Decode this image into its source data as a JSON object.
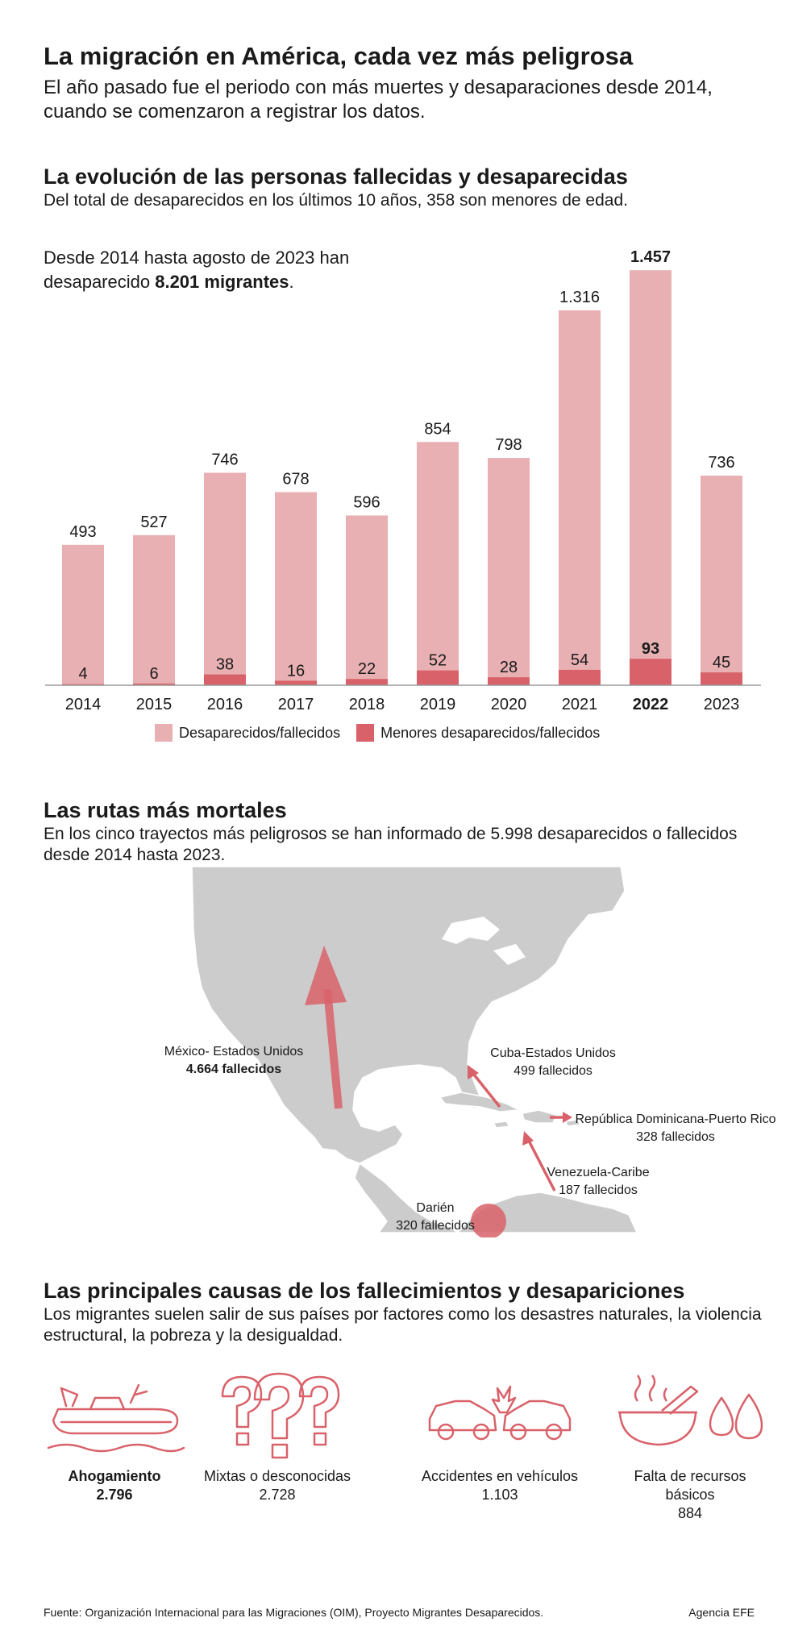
{
  "header": {
    "title": "La migración en América, cada vez más peligrosa",
    "subtitle": "El año pasado fue el periodo con más muertes y desaparaciones desde 2014, cuando se comenzaron a registrar los datos."
  },
  "evolution": {
    "title": "La evolución de las personas fallecidas y desaparecidas",
    "subtitle": "Del total de desaparecidos en los últimos 10 años, 358 son menores de edad.",
    "note_prefix": "Desde 2014 hasta agosto de 2023 han desaparecido ",
    "note_bold": "8.201 migrantes",
    "note_suffix": "."
  },
  "chart_data": {
    "type": "bar",
    "categories": [
      "2014",
      "2015",
      "2016",
      "2017",
      "2018",
      "2019",
      "2020",
      "2021",
      "2022",
      "2023"
    ],
    "highlight_category": "2022",
    "series": [
      {
        "name": "Desaparecidos/fallecidos",
        "color": "#e8b0b3",
        "values": [
          493,
          527,
          746,
          678,
          596,
          854,
          798,
          1316,
          1457,
          736
        ],
        "labels": [
          "493",
          "527",
          "746",
          "678",
          "596",
          "854",
          "798",
          "1.316",
          "1.457",
          "736"
        ]
      },
      {
        "name": "Menores desaparecidos/fallecidos",
        "color": "#d9626a",
        "values": [
          4,
          6,
          38,
          16,
          22,
          52,
          28,
          54,
          93,
          45
        ],
        "labels": [
          "4",
          "6",
          "38",
          "16",
          "22",
          "52",
          "28",
          "54",
          "93",
          "45"
        ]
      }
    ],
    "ylim": [
      0,
      1500
    ],
    "grid": false,
    "legend": "bottom"
  },
  "routes": {
    "title": "Las rutas más mortales",
    "subtitle": "En los cinco trayectos más peligrosos se han informado de 5.998 desaparecidos o fallecidos desde 2014 hasta 2023.",
    "items": [
      {
        "name": "México- Estados Unidos",
        "value": "4.664 fallecidos",
        "bold": true
      },
      {
        "name": "Cuba-Estados Unidos",
        "value": "499 fallecidos",
        "bold": false
      },
      {
        "name": "República Dominicana-Puerto Rico",
        "value": "328 fallecidos",
        "bold": false
      },
      {
        "name": "Venezuela-Caribe",
        "value": "187 fallecidos",
        "bold": false
      },
      {
        "name": "Darién",
        "value": "320 fallecidos",
        "bold": false
      }
    ],
    "map_color": "#cccccc",
    "accent": "#d9626a"
  },
  "causes": {
    "title": "Las principales causas de los fallecimientos y desapariciones",
    "subtitle": "Los migrantes suelen salir de sus países por factores como los desastres naturales, la violencia estructural, la pobreza y la desigualdad.",
    "items": [
      {
        "icon": "boat-icon",
        "label": "Ahogamiento",
        "value": "2.796",
        "bold": true
      },
      {
        "icon": "question-marks-icon",
        "label": "Mixtas o desconocidas",
        "value": "2.728",
        "bold": false
      },
      {
        "icon": "car-crash-icon",
        "label": "Accidentes en vehículos",
        "value": "1.103",
        "bold": false
      },
      {
        "icon": "food-water-icon",
        "label": "Falta de recursos básicos",
        "value": "884",
        "bold": false
      }
    ]
  },
  "footer": {
    "source": "Fuente: Organización Internacional para las Migraciones (OIM), Proyecto Migrantes Desaparecidos.",
    "agency": "Agencia EFE"
  }
}
